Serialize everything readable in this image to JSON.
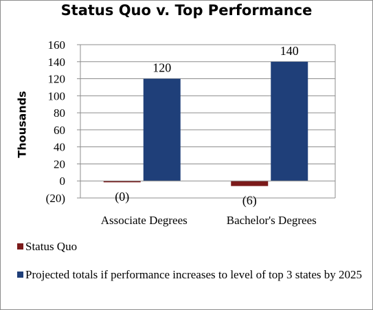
{
  "chart_data": {
    "type": "bar",
    "title": "Status Quo v. Top Performance",
    "ylabel": "Thousands",
    "xlabel": "",
    "ylim": [
      -20,
      160
    ],
    "yticks": [
      -20,
      0,
      20,
      40,
      60,
      80,
      100,
      120,
      140,
      160
    ],
    "ytick_labels": [
      "(20)",
      "0",
      "20",
      "40",
      "60",
      "80",
      "100",
      "120",
      "140",
      "160"
    ],
    "categories": [
      "Associate Degrees",
      "Bachelor's Degrees"
    ],
    "series": [
      {
        "name": "Status Quo",
        "color": "#7b1a1a",
        "values": [
          -0.4,
          -6
        ],
        "data_labels": [
          "(0)",
          "(6)"
        ]
      },
      {
        "name": "Projected totals if performance increases to level of top 3 states by 2025",
        "color": "#1f3f79",
        "values": [
          120,
          140
        ],
        "data_labels": [
          "120",
          "140"
        ]
      }
    ],
    "grid": true,
    "legend_position": "bottom"
  }
}
